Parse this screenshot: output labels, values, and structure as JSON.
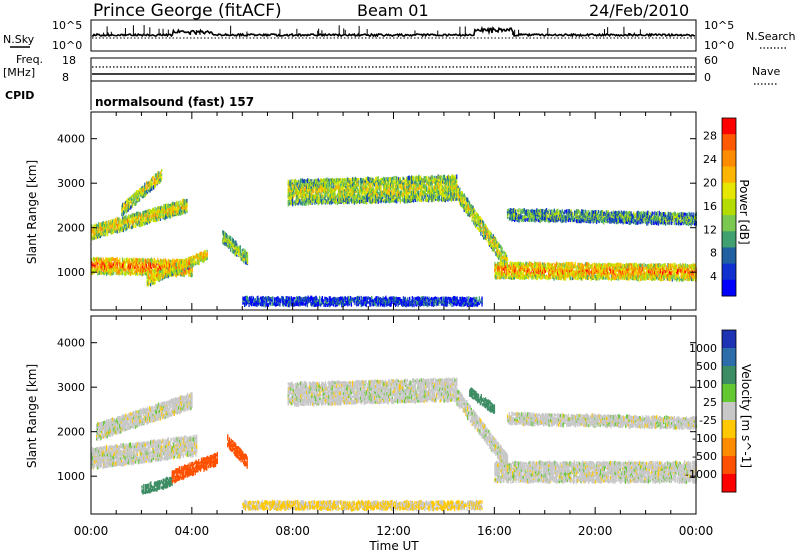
{
  "header": {
    "title": "Prince George (fitACF)",
    "beam": "Beam 01",
    "date": "24/Feb/2010"
  },
  "strip_labels": {
    "nsky": "N.Sky",
    "nsky_tick_top": "10^5",
    "nsky_tick_bottom": "10^0",
    "nsearch": "N.Search",
    "nsearch_tick_top": "10^5",
    "nsearch_tick_bottom": "10^0",
    "freq_label": "Freq.",
    "freq_unit": "[MHz]",
    "freq_tick_top": "18",
    "freq_tick_bottom": "8",
    "nave_tick_top": "60",
    "nave_tick_bottom": "0",
    "nave": "Nave",
    "cpid": "CPID",
    "cpid_value": "normalsound (fast) 157"
  },
  "power_colorbar": {
    "label": "Power [dB]",
    "ticks": [
      "28",
      "24",
      "20",
      "16",
      "12",
      "8",
      "4"
    ],
    "colors": [
      "#ff0000",
      "#ff5a00",
      "#ff8c00",
      "#ffb400",
      "#e6e600",
      "#b4dc00",
      "#7ac850",
      "#40a070",
      "#2060a0",
      "#1030d0",
      "#0000ff"
    ]
  },
  "velocity_colorbar": {
    "label": "Velocity [m s^-1]",
    "ticks": [
      "1000",
      "500",
      "100",
      "25",
      "-25",
      "-100",
      "-500",
      "-1000"
    ],
    "colors": [
      "#1e32b4",
      "#2d6eaa",
      "#3c8c64",
      "#64c832",
      "#c8c8c8",
      "#ffc800",
      "#ff8c00",
      "#ff5000",
      "#ff0000"
    ]
  },
  "chart_data": [
    {
      "type": "heatmap",
      "panel": "power",
      "ylabel": "Slant Range [km]",
      "xlabel": "",
      "x_ticks": [
        "00:00",
        "04:00",
        "08:00",
        "12:00",
        "16:00",
        "20:00",
        "00:00"
      ],
      "y_ticks": [
        1000,
        2000,
        3000,
        4000
      ],
      "xlim": [
        0,
        24
      ],
      "ylim": [
        150,
        4600
      ],
      "regions": [
        {
          "t0": 0.0,
          "t1": 4.0,
          "r_start": 1150,
          "r_end": 1100,
          "width": 350,
          "level": 0.85
        },
        {
          "t0": 0.0,
          "t1": 3.8,
          "r_start": 1900,
          "r_end": 2500,
          "width": 300,
          "level": 0.65
        },
        {
          "t0": 1.2,
          "t1": 2.8,
          "r_start": 2400,
          "r_end": 3200,
          "width": 260,
          "level": 0.6
        },
        {
          "t0": 2.2,
          "t1": 4.6,
          "r_start": 800,
          "r_end": 1400,
          "width": 220,
          "level": 0.7
        },
        {
          "t0": 5.2,
          "t1": 6.2,
          "r_start": 1800,
          "r_end": 1300,
          "width": 280,
          "level": 0.5
        },
        {
          "t0": 7.8,
          "t1": 14.5,
          "r_start": 2800,
          "r_end": 2900,
          "width": 550,
          "level": 0.55
        },
        {
          "t0": 14.5,
          "t1": 16.5,
          "r_start": 2800,
          "r_end": 1200,
          "width": 350,
          "level": 0.6
        },
        {
          "t0": 16.0,
          "t1": 24.0,
          "r_start": 1050,
          "r_end": 1000,
          "width": 350,
          "level": 0.8
        },
        {
          "t0": 16.5,
          "t1": 24.0,
          "r_start": 2300,
          "r_end": 2200,
          "width": 250,
          "level": 0.35
        },
        {
          "t0": 6.0,
          "t1": 15.5,
          "r_start": 350,
          "r_end": 350,
          "width": 180,
          "level": 0.1
        }
      ]
    },
    {
      "type": "heatmap",
      "panel": "velocity",
      "ylabel": "Slant Range [km]",
      "xlabel": "Time UT",
      "x_ticks": [
        "00:00",
        "04:00",
        "08:00",
        "12:00",
        "16:00",
        "20:00",
        "00:00"
      ],
      "y_ticks": [
        1000,
        2000,
        3000,
        4000
      ],
      "xlim": [
        0,
        24
      ],
      "ylim": [
        150,
        4600
      ],
      "regions": [
        {
          "t0": 0.0,
          "t1": 4.2,
          "r_start": 1400,
          "r_end": 1700,
          "width": 450,
          "vel": 0
        },
        {
          "t0": 0.2,
          "t1": 4.0,
          "r_start": 2000,
          "r_end": 2700,
          "width": 350,
          "vel": 0
        },
        {
          "t0": 2.0,
          "t1": 3.2,
          "r_start": 700,
          "r_end": 900,
          "width": 200,
          "vel": 150
        },
        {
          "t0": 3.2,
          "t1": 5.0,
          "r_start": 1000,
          "r_end": 1400,
          "width": 260,
          "vel": -400
        },
        {
          "t0": 5.4,
          "t1": 6.2,
          "r_start": 1800,
          "r_end": 1300,
          "width": 260,
          "vel": -700
        },
        {
          "t0": 7.8,
          "t1": 14.5,
          "r_start": 2850,
          "r_end": 2950,
          "width": 500,
          "vel": 0
        },
        {
          "t0": 14.5,
          "t1": 16.5,
          "r_start": 2800,
          "r_end": 1300,
          "width": 350,
          "vel": 0
        },
        {
          "t0": 15.0,
          "t1": 16.0,
          "r_start": 2900,
          "r_end": 2500,
          "width": 200,
          "vel": 150
        },
        {
          "t0": 16.0,
          "t1": 24.0,
          "r_start": 1100,
          "r_end": 1100,
          "width": 450,
          "vel": 0
        },
        {
          "t0": 16.5,
          "t1": 24.0,
          "r_start": 2300,
          "r_end": 2200,
          "width": 250,
          "vel": 0
        },
        {
          "t0": 6.0,
          "t1": 15.5,
          "r_start": 350,
          "r_end": 350,
          "width": 180,
          "vel": -30
        }
      ]
    }
  ]
}
